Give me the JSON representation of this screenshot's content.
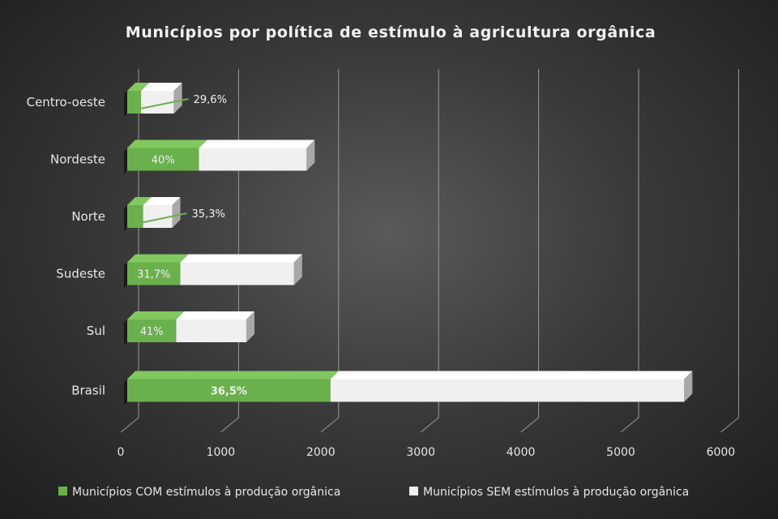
{
  "chart_data": {
    "type": "bar",
    "orientation": "horizontal",
    "stacked": true,
    "style": "3d",
    "title": "Municípios por política de estímulo à agricultura orgânica",
    "xlabel": "",
    "ylabel": "",
    "xlim": [
      0,
      6000
    ],
    "x_ticks": [
      "0",
      "1000",
      "2000",
      "3000",
      "4000",
      "5000",
      "6000"
    ],
    "grid": true,
    "legend_position": "bottom",
    "categories": [
      "Centro-oeste",
      "Nordeste",
      "Norte",
      "Sudeste",
      "Sul",
      "Brasil"
    ],
    "series": [
      {
        "name": "Municípios COM estímulos à produção orgânica",
        "color": "#6ab04c",
        "values": [
          138,
          717,
          159,
          531,
          489,
          2032
        ],
        "labels": [
          "29,6%",
          "40%",
          "35,3%",
          "31,7%",
          "41%",
          "36,5%"
        ]
      },
      {
        "name": "Municípios SEM estímulos à produção orgânica",
        "color": "#f0f0f0",
        "values": [
          329,
          1077,
          291,
          1137,
          702,
          3538
        ]
      }
    ]
  }
}
